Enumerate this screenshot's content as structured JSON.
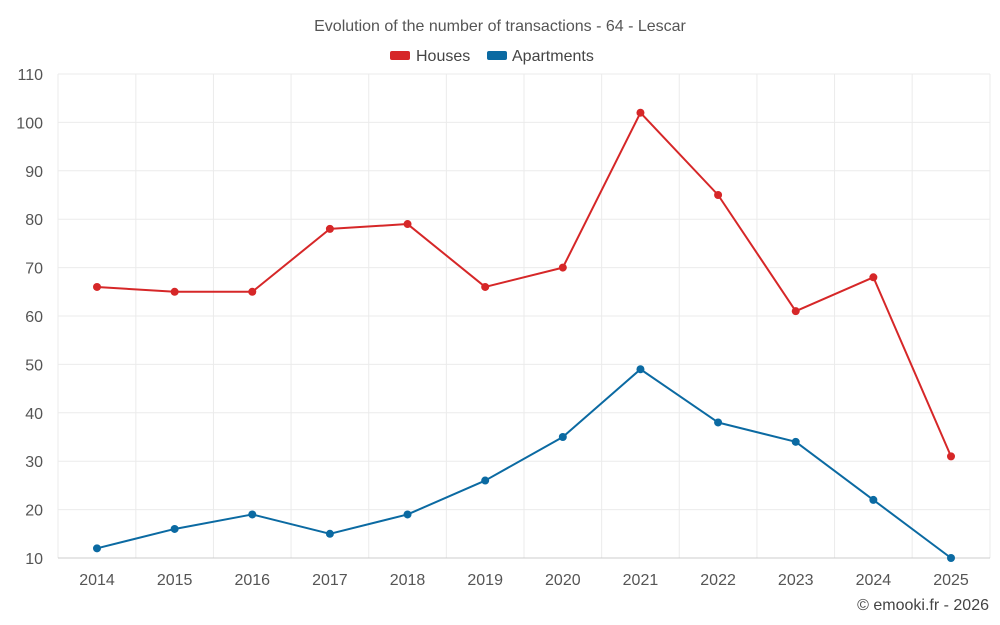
{
  "chart_data": {
    "type": "line",
    "title": "Evolution of the number of transactions - 64 - Lescar",
    "categories": [
      "2014",
      "2015",
      "2016",
      "2017",
      "2018",
      "2019",
      "2020",
      "2021",
      "2022",
      "2023",
      "2024",
      "2025"
    ],
    "series": [
      {
        "name": "Houses",
        "color": "#d62728",
        "values": [
          66,
          65,
          65,
          78,
          79,
          66,
          70,
          102,
          85,
          61,
          68,
          31
        ]
      },
      {
        "name": "Apartments",
        "color": "#0b6aa2",
        "values": [
          12,
          16,
          19,
          15,
          19,
          26,
          35,
          49,
          38,
          34,
          22,
          10
        ]
      }
    ],
    "ylim": [
      10,
      110
    ],
    "yticks": [
      10,
      20,
      30,
      40,
      50,
      60,
      70,
      80,
      90,
      100,
      110
    ],
    "xlabel": "",
    "ylabel": "",
    "grid": true,
    "legend": "top-center"
  },
  "credit": "© emooki.fr - 2026"
}
